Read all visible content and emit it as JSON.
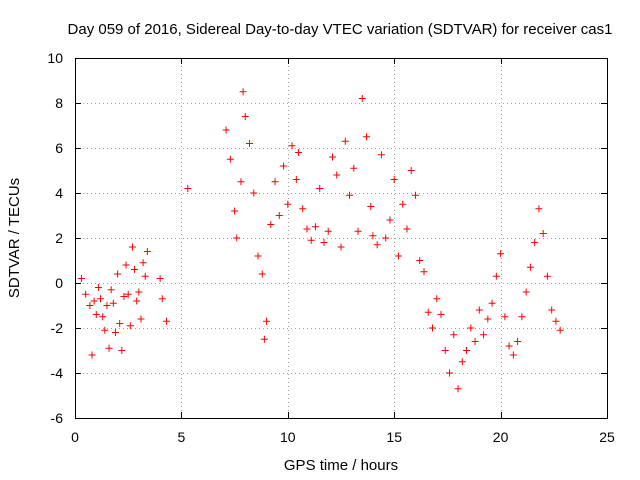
{
  "chart_data": {
    "type": "scatter",
    "title": "Day 059 of 2016, Sidereal Day-to-day VTEC variation (SDTVAR) for receiver cas1",
    "xlabel": "GPS time / hours",
    "ylabel": "SDTVAR / TECUs",
    "xlim": [
      0,
      25
    ],
    "ylim": [
      -6,
      10
    ],
    "xticks": [
      0,
      5,
      10,
      15,
      20,
      25
    ],
    "yticks": [
      -6,
      -4,
      -2,
      0,
      2,
      4,
      6,
      8,
      10
    ],
    "grid": true,
    "marker": "+",
    "color": "#ff0000",
    "series": [
      {
        "name": "SDTVAR",
        "x": [
          0.3,
          0.5,
          0.7,
          0.8,
          0.9,
          1.0,
          1.1,
          1.2,
          1.3,
          1.4,
          1.5,
          1.6,
          1.7,
          1.8,
          1.9,
          2.0,
          2.1,
          2.2,
          2.3,
          2.4,
          2.5,
          2.6,
          2.7,
          2.8,
          2.9,
          3.0,
          3.1,
          3.2,
          3.3,
          3.4,
          4.0,
          4.1,
          4.3,
          5.3,
          7.1,
          7.3,
          7.5,
          7.6,
          7.8,
          7.9,
          8.0,
          8.2,
          8.4,
          8.6,
          8.8,
          8.9,
          9.0,
          9.2,
          9.4,
          9.6,
          9.8,
          10.0,
          10.2,
          10.4,
          10.5,
          10.7,
          10.9,
          11.1,
          11.3,
          11.5,
          11.7,
          11.9,
          12.1,
          12.3,
          12.5,
          12.7,
          12.9,
          13.1,
          13.3,
          13.5,
          13.7,
          13.9,
          14.0,
          14.2,
          14.4,
          14.6,
          14.8,
          15.0,
          15.2,
          15.4,
          15.6,
          15.8,
          16.0,
          16.2,
          16.4,
          16.6,
          16.8,
          17.0,
          17.2,
          17.4,
          17.6,
          17.8,
          18.0,
          18.2,
          18.4,
          18.6,
          18.8,
          19.0,
          19.2,
          19.4,
          19.6,
          19.8,
          20.0,
          20.2,
          20.4,
          20.6,
          20.8,
          21.0,
          21.2,
          21.4,
          21.6,
          21.8,
          22.0,
          22.2,
          22.4,
          22.6,
          22.8
        ],
        "values": [
          0.2,
          -0.5,
          -1.0,
          -3.2,
          -0.8,
          -1.4,
          -0.2,
          -0.7,
          -1.5,
          -2.1,
          -1.0,
          -2.9,
          -0.3,
          -0.9,
          -2.2,
          0.4,
          -1.8,
          -3.0,
          -0.6,
          0.8,
          -0.5,
          -1.9,
          1.6,
          0.6,
          -0.8,
          -0.4,
          -1.6,
          0.9,
          0.3,
          1.4,
          0.2,
          -0.7,
          -1.7,
          4.2,
          6.8,
          5.5,
          3.2,
          2.0,
          4.5,
          8.5,
          7.4,
          6.2,
          4.0,
          1.2,
          0.4,
          -2.5,
          -1.7,
          2.6,
          4.5,
          3.0,
          5.2,
          3.5,
          6.1,
          4.6,
          5.8,
          3.3,
          2.4,
          1.9,
          2.5,
          4.2,
          1.8,
          2.3,
          5.6,
          4.8,
          1.6,
          6.3,
          3.9,
          5.1,
          2.3,
          8.2,
          6.5,
          3.4,
          2.1,
          1.7,
          5.7,
          2.0,
          2.8,
          4.6,
          1.2,
          3.5,
          2.4,
          5.0,
          3.9,
          1.0,
          0.5,
          -1.3,
          -2.0,
          -0.7,
          -1.4,
          -3.0,
          -4.0,
          -2.3,
          -4.7,
          -3.5,
          -3.0,
          -2.0,
          -2.6,
          -1.2,
          -2.3,
          -1.6,
          -0.9,
          0.3,
          1.3,
          -1.5,
          -2.8,
          -3.2,
          -2.6,
          -1.5,
          -0.4,
          0.7,
          1.8,
          3.3,
          2.2,
          0.3,
          -1.2,
          -1.7,
          -2.1
        ]
      }
    ]
  }
}
